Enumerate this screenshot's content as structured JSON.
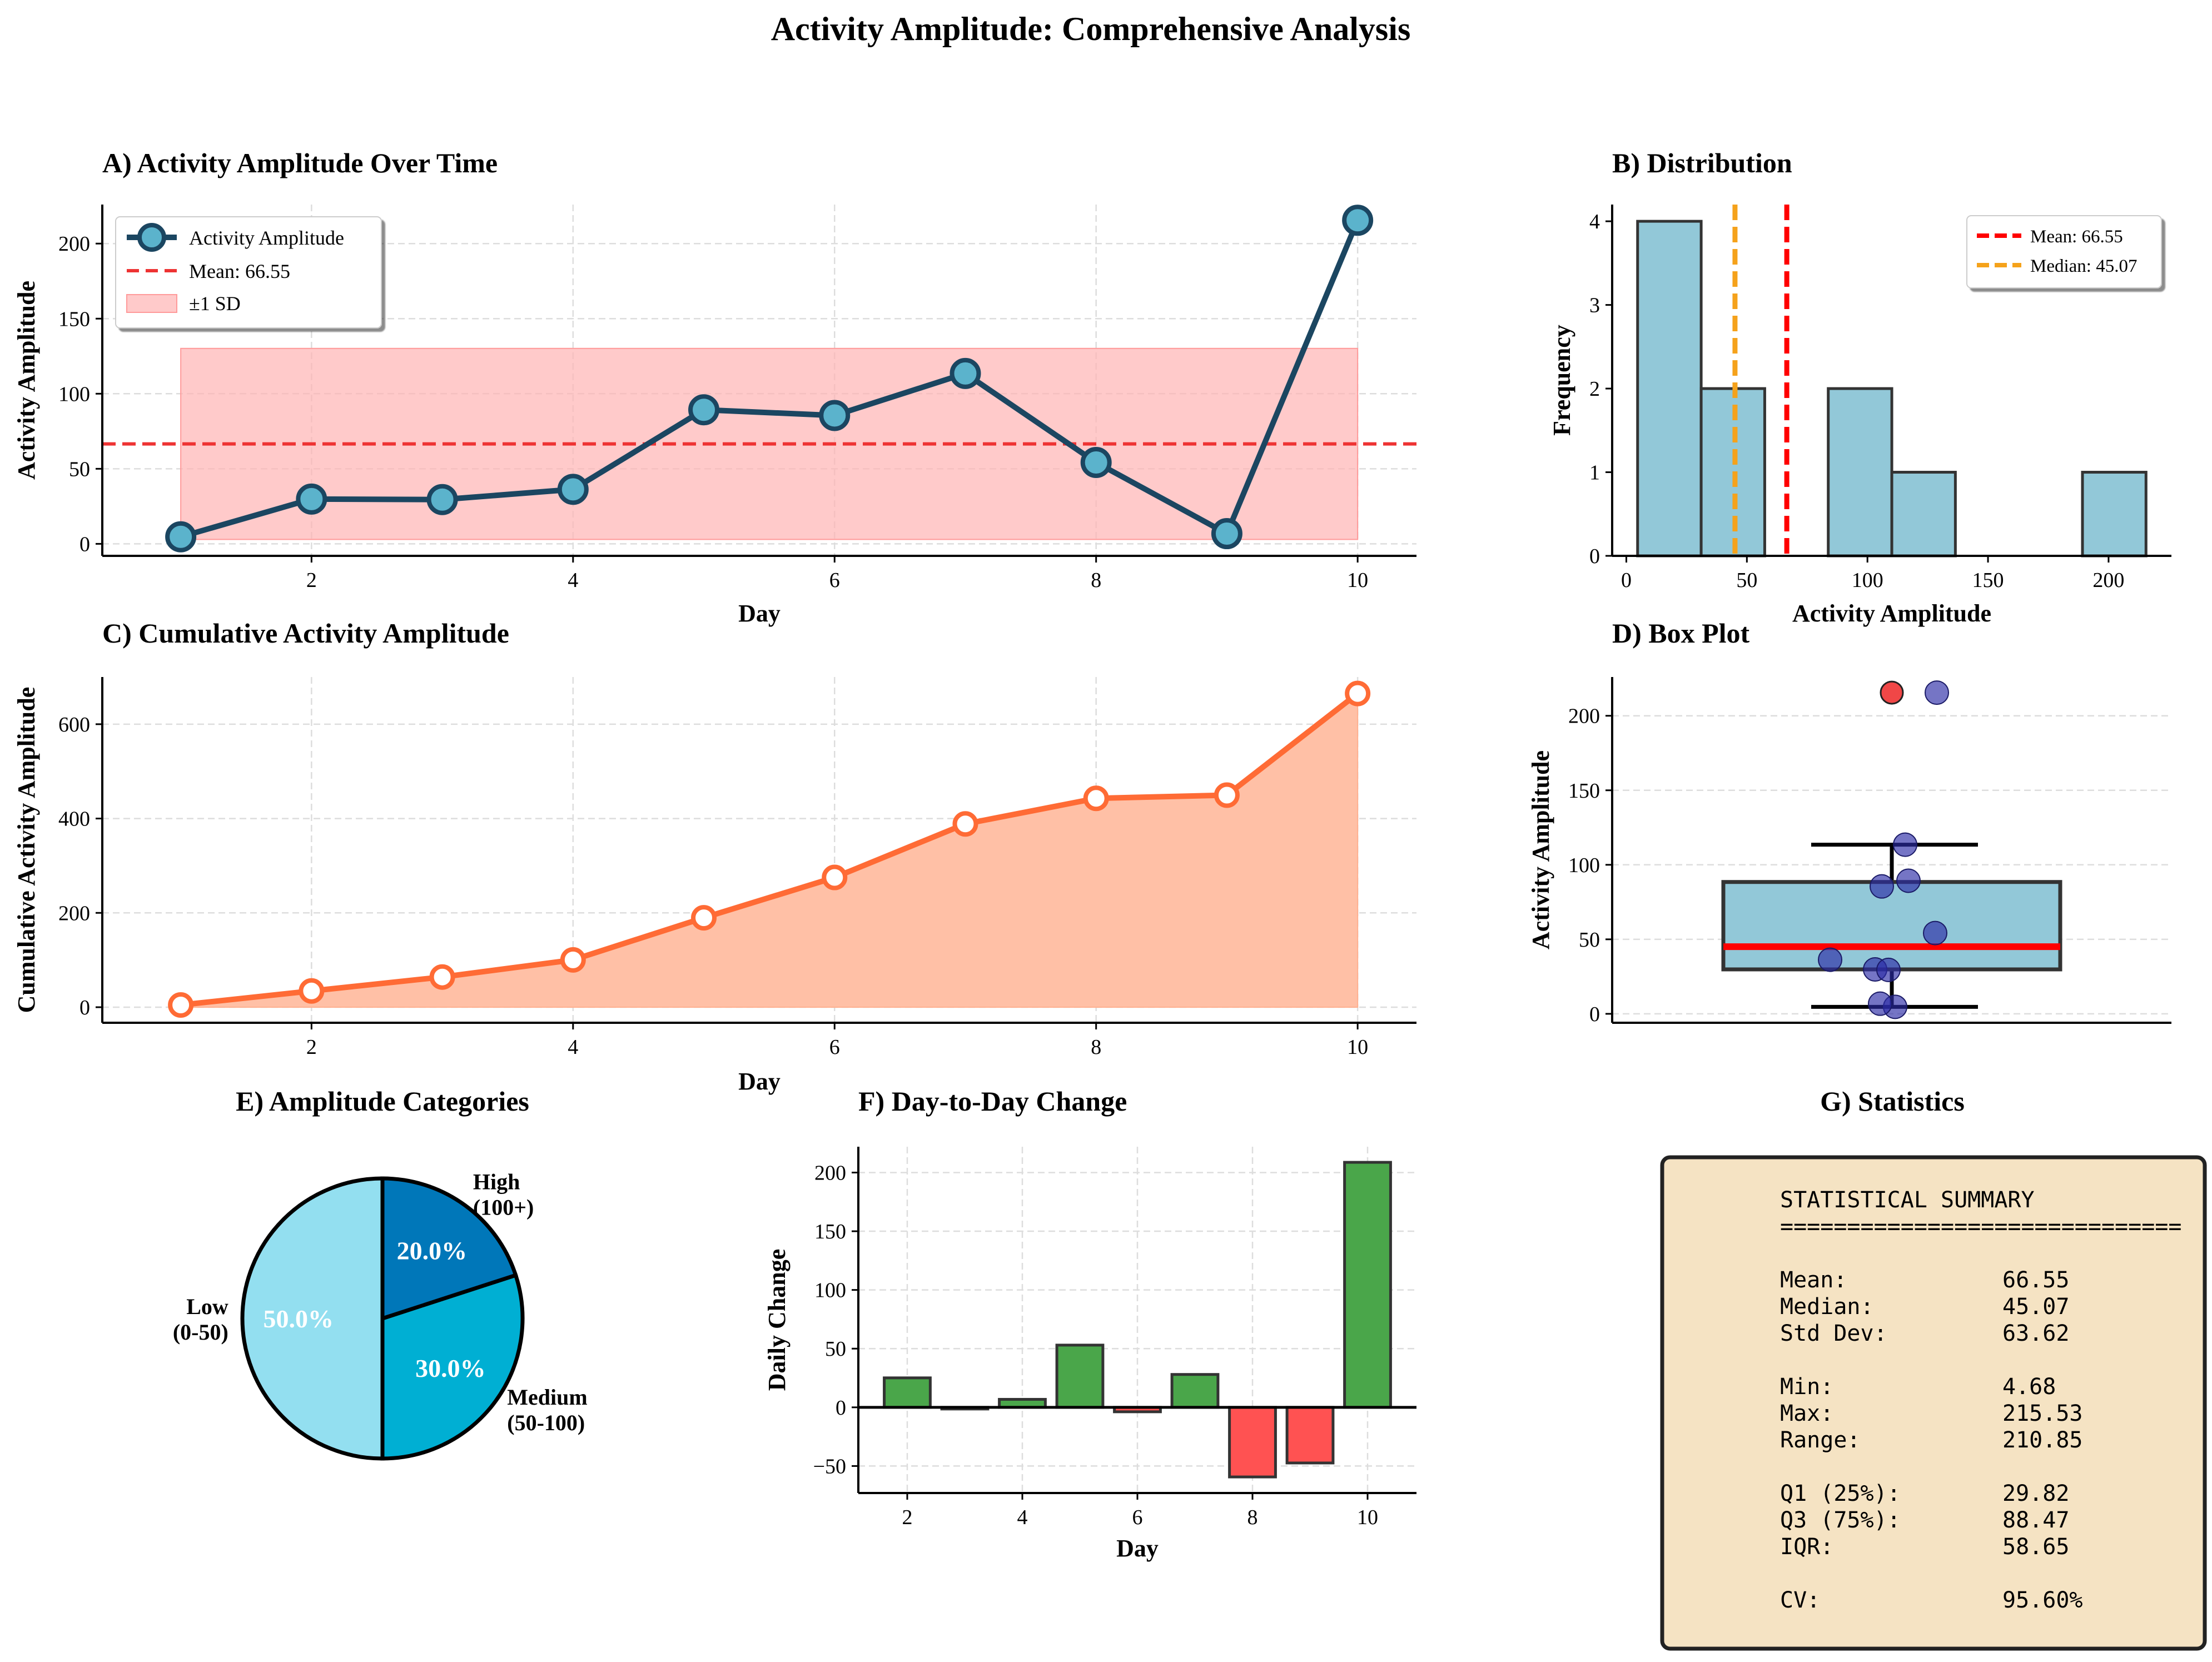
{
  "suptitle": "Activity Amplitude: Comprehensive Analysis",
  "colors": {
    "line": "#1b4661",
    "marker_fill": "#5bb3cc",
    "mean_line": "#ee3333",
    "sd_band": "#ffb3b3",
    "hist_bar": "#92c8d8",
    "hist_mean": "#ff0000",
    "hist_median": "#f5a21b",
    "cumulative": "#ff6b35",
    "cumulative_fill": "#ffc0a6",
    "box_fill": "#92c8d8",
    "box_median": "#ff0000",
    "jitter": "#2b2ba6",
    "flier": "#ee3333",
    "pie_low": "#93dff0",
    "pie_medium": "#00afd3",
    "pie_high": "#0077b9",
    "bar_pos": "#4aa64a",
    "bar_neg": "#ff5252",
    "stats_bg": "#f5e3c3"
  },
  "chart_data": [
    {
      "panel": "A",
      "type": "line",
      "title": "A) Activity Amplitude Over Time",
      "xlabel": "Day",
      "ylabel": "Activity Amplitude",
      "x": [
        1,
        2,
        3,
        4,
        5,
        6,
        7,
        8,
        9,
        10
      ],
      "series": [
        {
          "name": "Activity Amplitude",
          "values": [
            4.68,
            29.82,
            29.5,
            36.3,
            89.3,
            85.5,
            113.5,
            54.2,
            6.8,
            215.53
          ]
        }
      ],
      "mean": 66.55,
      "mean_label": "Mean: 66.55",
      "sd": 63.62,
      "sd_label": "±1 SD",
      "xticks": [
        2,
        4,
        6,
        8,
        10
      ],
      "yticks": [
        0,
        50,
        100,
        150,
        200
      ],
      "xlim": [
        0.4,
        10.45
      ],
      "ylim": [
        -8,
        226
      ],
      "grid": true,
      "legend": "upper-left"
    },
    {
      "panel": "B",
      "type": "bar",
      "subtype": "histogram",
      "title": "B) Distribution",
      "xlabel": "Activity Amplitude",
      "ylabel": "Frequency",
      "bin_edges": [
        4.68,
        31.04,
        57.4,
        83.75,
        110.11,
        136.47,
        162.83,
        189.18,
        215.53
      ],
      "values": [
        4,
        2,
        0,
        2,
        1,
        0,
        0,
        1
      ],
      "mean": 66.55,
      "median": 45.07,
      "mean_label": "Mean: 66.55",
      "median_label": "Median: 45.07",
      "xticks": [
        0,
        50,
        100,
        150,
        200
      ],
      "yticks": [
        0,
        1,
        2,
        3,
        4
      ],
      "xlim": [
        -5.87,
        226.07
      ],
      "ylim": [
        0,
        4.2
      ],
      "legend": "upper-right"
    },
    {
      "panel": "C",
      "type": "area",
      "title": "C) Cumulative Activity Amplitude",
      "xlabel": "Day",
      "ylabel": "Cumulative Activity Amplitude",
      "x": [
        1,
        2,
        3,
        4,
        5,
        6,
        7,
        8,
        9,
        10
      ],
      "values": [
        4.68,
        34.5,
        64.0,
        100.3,
        189.6,
        275.1,
        388.6,
        442.8,
        449.6,
        665.1
      ],
      "xticks": [
        2,
        4,
        6,
        8,
        10
      ],
      "yticks": [
        0,
        200,
        400,
        600
      ],
      "xlim": [
        0.4,
        10.45
      ],
      "ylim": [
        -33,
        700
      ],
      "grid": true
    },
    {
      "panel": "D",
      "type": "box",
      "title": "D) Box Plot",
      "ylabel": "Activity Amplitude",
      "q1": 29.82,
      "median": 45.07,
      "q3": 88.47,
      "whisker_low": 4.68,
      "whisker_high": 113.5,
      "fliers": [
        215.53
      ],
      "points": [
        4.68,
        29.82,
        29.5,
        36.3,
        89.3,
        85.5,
        113.5,
        54.2,
        6.8,
        215.53
      ],
      "yticks": [
        0,
        50,
        100,
        150,
        200
      ],
      "ylim": [
        -6,
        226
      ],
      "grid": true
    },
    {
      "panel": "E",
      "type": "pie",
      "title": "E) Amplitude Categories",
      "labels": [
        "Low\n(0-50)",
        "Medium\n(50-100)",
        "High\n(100+)"
      ],
      "values": [
        50.0,
        30.0,
        20.0
      ],
      "value_labels": [
        "50.0%",
        "30.0%",
        "20.0%"
      ]
    },
    {
      "panel": "F",
      "type": "bar",
      "title": "F) Day-to-Day Change",
      "xlabel": "Day",
      "ylabel": "Daily Change",
      "x": [
        2,
        3,
        4,
        5,
        6,
        7,
        8,
        9,
        10
      ],
      "values": [
        25.1,
        -0.3,
        6.8,
        53.0,
        -3.8,
        28.0,
        -59.3,
        -47.4,
        208.7
      ],
      "xticks": [
        2,
        4,
        6,
        8,
        10
      ],
      "yticks": [
        -50,
        0,
        50,
        100,
        150,
        200
      ],
      "xlim": [
        1.15,
        10.85
      ],
      "ylim": [
        -73,
        222
      ],
      "grid": true
    }
  ],
  "stats_panel": {
    "title": "G) Statistics",
    "heading": "STATISTICAL SUMMARY",
    "rule": "==============================",
    "groups": [
      [
        {
          "label": "Mean:",
          "value": "66.55"
        },
        {
          "label": "Median:",
          "value": "45.07"
        },
        {
          "label": "Std Dev:",
          "value": "63.62"
        }
      ],
      [
        {
          "label": "Min:",
          "value": "4.68"
        },
        {
          "label": "Max:",
          "value": "215.53"
        },
        {
          "label": "Range:",
          "value": "210.85"
        }
      ],
      [
        {
          "label": "Q1 (25%):",
          "value": "29.82"
        },
        {
          "label": "Q3 (75%):",
          "value": "88.47"
        },
        {
          "label": "IQR:",
          "value": "58.65"
        }
      ],
      [
        {
          "label": "CV:",
          "value": "95.60%"
        }
      ]
    ]
  }
}
